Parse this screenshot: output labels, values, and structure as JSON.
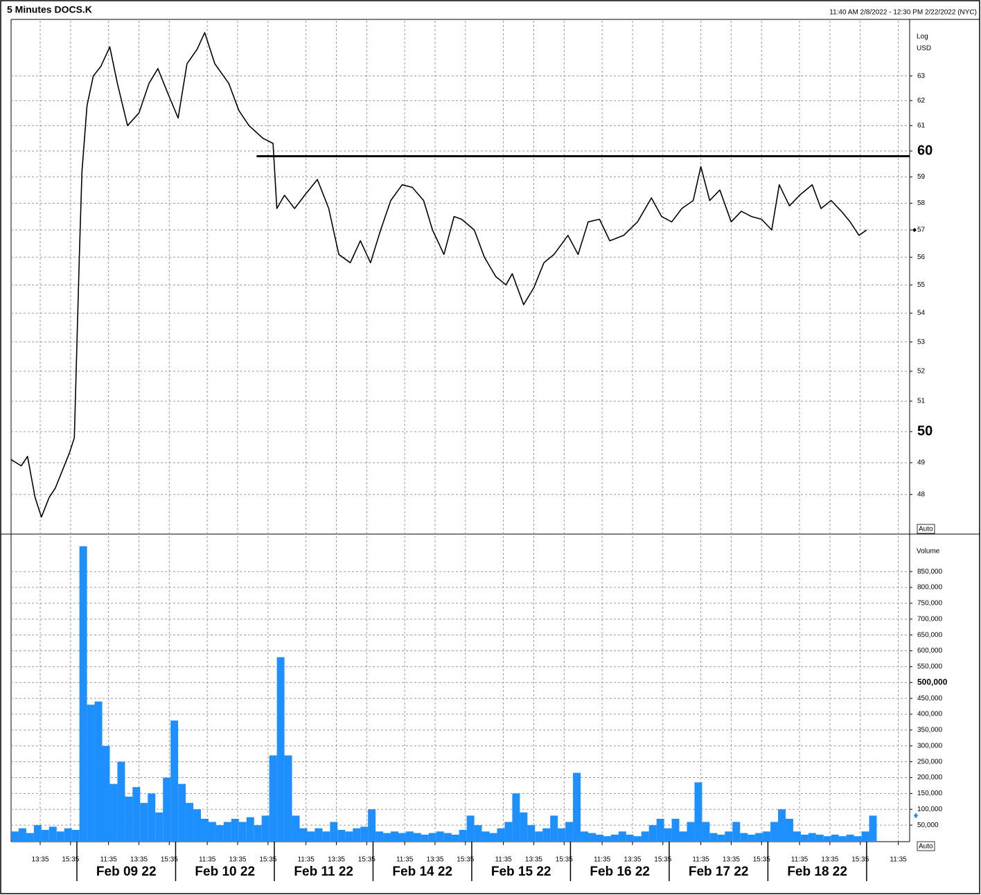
{
  "header": {
    "title": "5 Minutes DOCS.K",
    "range": "11:40 AM 2/8/2022 - 12:30 PM 2/22/2022 (NYC)"
  },
  "chart_data": [
    {
      "type": "line",
      "y_scale": "log",
      "y_unit_labels": [
        "Log",
        "USD"
      ],
      "autoscale_label": "Auto",
      "color": "#000000",
      "grid": true,
      "x": [
        0,
        8,
        13,
        19,
        24,
        30,
        35,
        40,
        46,
        50,
        54,
        56,
        60,
        65,
        71,
        78,
        84,
        92,
        101,
        109,
        116,
        123,
        132,
        139,
        147,
        153,
        161,
        172,
        180,
        188,
        199,
        207,
        210,
        216,
        224,
        232,
        242,
        251,
        259,
        268,
        276,
        284,
        292,
        300,
        309,
        317,
        326,
        333,
        342,
        350,
        356,
        366,
        374,
        383,
        391,
        396,
        405,
        413,
        421,
        429,
        440,
        448,
        456,
        465,
        473,
        484,
        495,
        506,
        514,
        522,
        530,
        539,
        545,
        552,
        560,
        569,
        577,
        585,
        593,
        601,
        607,
        615,
        623,
        633,
        640,
        648,
        656,
        663,
        670,
        676
      ],
      "values": [
        49.1,
        48.9,
        49.2,
        47.9,
        47.3,
        47.9,
        48.2,
        48.7,
        49.3,
        49.8,
        56.1,
        59.2,
        61.8,
        63,
        63.4,
        64.2,
        62.7,
        61,
        61.5,
        62.7,
        63.3,
        62.4,
        61.3,
        63.5,
        64.1,
        64.8,
        63.5,
        62.7,
        61.6,
        61,
        60.5,
        60.3,
        57.8,
        58.3,
        57.8,
        58.3,
        58.9,
        57.8,
        56.1,
        55.8,
        56.6,
        55.8,
        57,
        58.1,
        58.7,
        58.6,
        58.1,
        57,
        56.1,
        57.5,
        57.4,
        57,
        56,
        55.3,
        55,
        55.4,
        54.3,
        54.9,
        55.8,
        56.1,
        56.8,
        56.1,
        57.3,
        57.4,
        56.6,
        56.8,
        57.3,
        58.2,
        57.5,
        57.3,
        57.8,
        58.1,
        59.4,
        58.1,
        58.5,
        57.3,
        57.7,
        57.5,
        57.4,
        57,
        58.7,
        57.9,
        58.3,
        58.7,
        57.8,
        58.1,
        57.7,
        57.3,
        56.8,
        57
      ],
      "xlim": [
        0,
        710
      ],
      "ylim": [
        46.8,
        65.3
      ],
      "yticks": [
        48,
        49,
        51,
        52,
        53,
        54,
        55,
        56,
        57,
        58,
        59,
        61,
        62,
        63
      ],
      "major_yticks": [
        50,
        60
      ],
      "hline": {
        "value": 59.8,
        "from": 194,
        "color": "#000000"
      }
    },
    {
      "type": "bar",
      "y_label": "Volume",
      "autoscale_label": "Auto",
      "color": "#1e8fff",
      "grid": true,
      "x": [
        0,
        6,
        12,
        18,
        24,
        30,
        36,
        42,
        48,
        54,
        60,
        66,
        72,
        78,
        84,
        90,
        96,
        102,
        108,
        114,
        120,
        126,
        132,
        138,
        144,
        150,
        156,
        162,
        168,
        174,
        180,
        186,
        192,
        198,
        204,
        210,
        216,
        222,
        228,
        234,
        240,
        246,
        252,
        258,
        264,
        270,
        276,
        282,
        288,
        294,
        300,
        306,
        312,
        318,
        324,
        330,
        336,
        342,
        348,
        354,
        360,
        366,
        372,
        378,
        384,
        390,
        396,
        402,
        408,
        414,
        420,
        426,
        432,
        438,
        444,
        450,
        456,
        462,
        468,
        474,
        480,
        486,
        492,
        498,
        504,
        510,
        516,
        522,
        528,
        534,
        540,
        546,
        552,
        558,
        564,
        570,
        576,
        582,
        588,
        594,
        600,
        606,
        612,
        618,
        624,
        630,
        636,
        642,
        648,
        654,
        660,
        666,
        672,
        678
      ],
      "values": [
        30000,
        40000,
        25000,
        50000,
        35000,
        45000,
        30000,
        40000,
        35000,
        930000,
        430000,
        440000,
        300000,
        180000,
        250000,
        140000,
        170000,
        120000,
        150000,
        90000,
        200000,
        380000,
        180000,
        120000,
        100000,
        70000,
        60000,
        50000,
        60000,
        70000,
        60000,
        75000,
        50000,
        80000,
        270000,
        580000,
        270000,
        80000,
        40000,
        30000,
        40000,
        30000,
        60000,
        35000,
        30000,
        40000,
        45000,
        100000,
        30000,
        25000,
        30000,
        25000,
        30000,
        25000,
        20000,
        25000,
        30000,
        25000,
        20000,
        35000,
        80000,
        50000,
        30000,
        25000,
        40000,
        60000,
        150000,
        90000,
        50000,
        30000,
        40000,
        80000,
        40000,
        60000,
        215000,
        30000,
        25000,
        20000,
        15000,
        20000,
        30000,
        20000,
        15000,
        30000,
        50000,
        70000,
        40000,
        70000,
        30000,
        60000,
        185000,
        60000,
        25000,
        20000,
        30000,
        60000,
        25000,
        20000,
        25000,
        30000,
        60000,
        100000,
        70000,
        30000,
        20000,
        25000,
        20000,
        15000,
        20000,
        15000,
        20000,
        15000,
        30000,
        80000
      ],
      "xlim": [
        0,
        710
      ],
      "ylim": [
        0,
        964000
      ],
      "yticks": [
        {
          "value": 50000,
          "label": "50,000"
        },
        {
          "value": 100000,
          "label": "100,000"
        },
        {
          "value": 150000,
          "label": "150,000"
        },
        {
          "value": 200000,
          "label": "200,000"
        },
        {
          "value": 250000,
          "label": "250,000"
        },
        {
          "value": 300000,
          "label": "300,000"
        },
        {
          "value": 350000,
          "label": "350,000"
        },
        {
          "value": 400000,
          "label": "400,000"
        },
        {
          "value": 450000,
          "label": "450,000"
        },
        {
          "value": 550000,
          "label": "550,000"
        },
        {
          "value": 600000,
          "label": "600,000"
        },
        {
          "value": 650000,
          "label": "650,000"
        },
        {
          "value": 700000,
          "label": "700,000"
        },
        {
          "value": 750000,
          "label": "750,000"
        },
        {
          "value": 800000,
          "label": "800,000"
        },
        {
          "value": 850000,
          "label": "850,000"
        }
      ],
      "major_yticks": [
        {
          "value": 500000,
          "label": "500,000"
        }
      ],
      "xticks": [
        {
          "value": 23,
          "label": "13:35"
        },
        {
          "value": 47,
          "label": "15:35"
        },
        {
          "value": 77,
          "label": "11:35"
        },
        {
          "value": 101,
          "label": "13:35"
        },
        {
          "value": 125,
          "label": "15:35"
        },
        {
          "value": 155,
          "label": "11:35"
        },
        {
          "value": 179,
          "label": "13:35"
        },
        {
          "value": 203,
          "label": "15:35"
        },
        {
          "value": 233,
          "label": "11:35"
        },
        {
          "value": 257,
          "label": "13:35"
        },
        {
          "value": 281,
          "label": "15:35"
        },
        {
          "value": 311,
          "label": "11:35"
        },
        {
          "value": 335,
          "label": "13:35"
        },
        {
          "value": 359,
          "label": "15:35"
        },
        {
          "value": 389,
          "label": "11:35"
        },
        {
          "value": 413,
          "label": "13:35"
        },
        {
          "value": 437,
          "label": "15:35"
        },
        {
          "value": 467,
          "label": "11:35"
        },
        {
          "value": 491,
          "label": "13:35"
        },
        {
          "value": 515,
          "label": "15:35"
        },
        {
          "value": 545,
          "label": "11:35"
        },
        {
          "value": 569,
          "label": "13:35"
        },
        {
          "value": 593,
          "label": "15:35"
        },
        {
          "value": 623,
          "label": "11:35"
        },
        {
          "value": 647,
          "label": "13:35"
        },
        {
          "value": 671,
          "label": "15:35"
        },
        {
          "value": 701,
          "label": "11:35"
        }
      ],
      "date_labels": [
        {
          "value": 52,
          "label": "Feb 09 22"
        },
        {
          "value": 130,
          "label": "Feb 10 22"
        },
        {
          "value": 208,
          "label": "Feb 11 22"
        },
        {
          "value": 286,
          "label": "Feb 14 22"
        },
        {
          "value": 364,
          "label": "Feb 15 22"
        },
        {
          "value": 442,
          "label": "Feb 16 22"
        },
        {
          "value": 520,
          "label": "Feb 17 22"
        },
        {
          "value": 598,
          "label": "Feb 18 22"
        },
        {
          "value": 676,
          "label": null
        }
      ]
    }
  ]
}
